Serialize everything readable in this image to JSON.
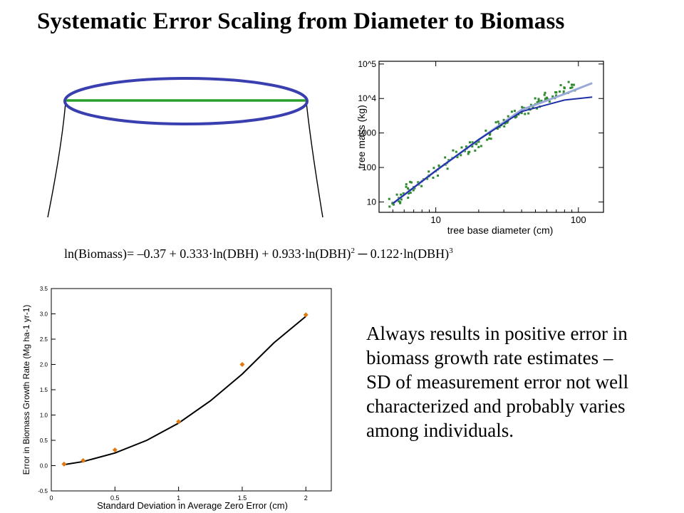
{
  "title": "Systematic Error Scaling from Diameter to Biomass",
  "equation": {
    "lhs": "ln(Biomass)= –0.37 + 0.333·ln(DBH) + 0.933·ln(DBH)",
    "exp2": "2",
    "minus": " ─ 0.122·ln(DBH)",
    "exp3": "3"
  },
  "body_text": {
    "lines": [
      "Always results in positive error in",
      "biomass growth rate estimates –",
      "SD of measurement  error not well",
      "characterized and probably varies",
      "among individuals."
    ]
  },
  "colors": {
    "ellipse": "#3a3fb0",
    "diameter_line": "#2aa02a",
    "scatter_points": "#2e8b2e",
    "fit_dark": "#1f2fa8",
    "fit_light": "#9aa8d8",
    "error_points": "#e07a10",
    "error_curve": "#000000"
  },
  "chart_data": [
    {
      "type": "scatter",
      "xlabel": "tree base diameter (cm)",
      "ylabel": "tree mass (kg)",
      "xscale": "log",
      "yscale": "log",
      "xlim": [
        4,
        150
      ],
      "ylim": [
        5,
        120000
      ],
      "x_ticks": [
        10,
        100
      ],
      "x_tick_labels": [
        "10",
        "100"
      ],
      "y_ticks": [
        10,
        100,
        1000,
        10000,
        100000
      ],
      "y_tick_labels": [
        "10",
        "100",
        "1000",
        "10^4",
        "10^5"
      ],
      "series": [
        {
          "kind": "points",
          "x": [
            5,
            5.5,
            6,
            6.5,
            7,
            8,
            9,
            10,
            12,
            14,
            16,
            18,
            20,
            24,
            28,
            32,
            36,
            40,
            45,
            50,
            55,
            60,
            70,
            80,
            90
          ],
          "y": [
            9,
            13,
            17,
            22,
            27,
            40,
            58,
            78,
            135,
            210,
            300,
            410,
            560,
            950,
            1500,
            2200,
            3000,
            3800,
            5200,
            6800,
            8500,
            10500,
            15000,
            20000,
            25000
          ]
        },
        {
          "kind": "fit-power",
          "x": [
            5,
            10,
            20,
            40,
            80,
            125
          ],
          "y": [
            9,
            80,
            640,
            4700,
            13500,
            28000
          ]
        },
        {
          "kind": "fit-polynomial",
          "x": [
            5,
            10,
            20,
            40,
            80,
            125
          ],
          "y": [
            9,
            80,
            640,
            4200,
            9000,
            11000
          ]
        }
      ]
    },
    {
      "type": "scatter",
      "xlabel": "Standard Deviation in Average Zero Error (cm)",
      "ylabel": "Error in Biomass Growth Rate (Mg ha-1 yr-1)",
      "xlim": [
        0,
        2.2
      ],
      "ylim": [
        -0.5,
        3.5
      ],
      "x_tick_labels": [
        "0",
        "0.5",
        "1",
        "1.5",
        "2"
      ],
      "y_tick_labels": [
        "-0.5",
        "0.0",
        "0.5",
        "1.0",
        "1.5",
        "2.0",
        "2.5",
        "3.0",
        "3.5"
      ],
      "series": [
        {
          "kind": "points",
          "x": [
            0.1,
            0.25,
            0.5,
            1.0,
            1.5,
            2.0
          ],
          "y": [
            0.03,
            0.1,
            0.31,
            0.87,
            2.0,
            2.98
          ]
        },
        {
          "kind": "curve",
          "x": [
            0.1,
            0.25,
            0.5,
            0.75,
            1.0,
            1.25,
            1.5,
            1.75,
            2.0
          ],
          "y": [
            0.02,
            0.08,
            0.25,
            0.5,
            0.84,
            1.28,
            1.81,
            2.43,
            2.95
          ]
        }
      ]
    }
  ]
}
